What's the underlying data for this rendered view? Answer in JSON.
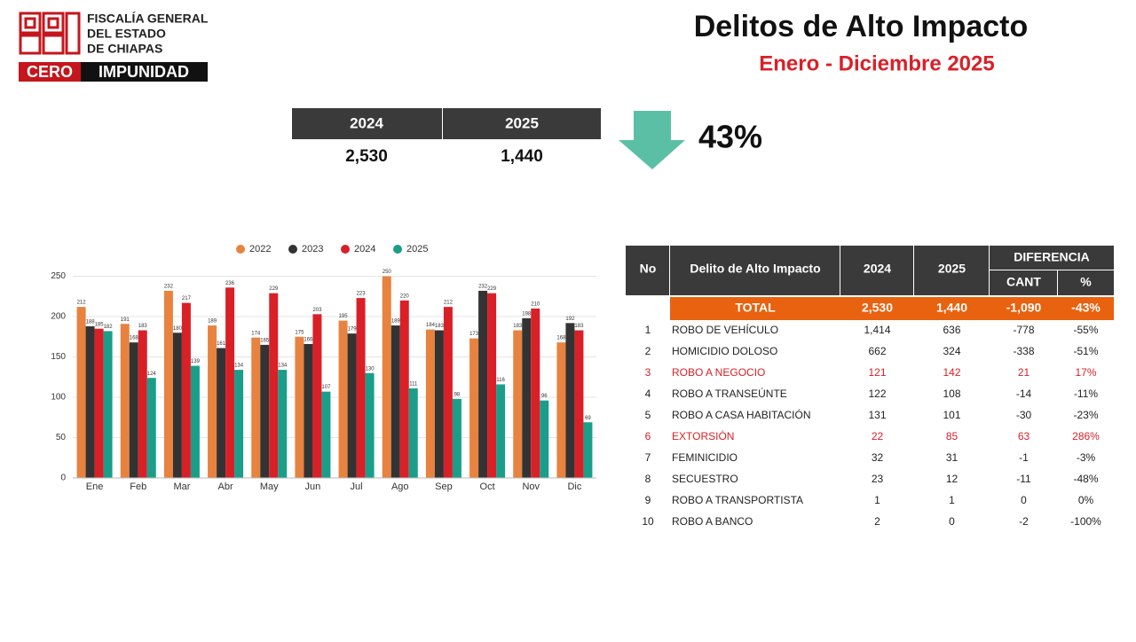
{
  "header": {
    "org": [
      "FISCALÍA GENERAL",
      "DEL ESTADO",
      "DE CHIAPAS"
    ],
    "badge": [
      "CERO",
      "IMPUNIDAD"
    ],
    "title": "Delitos de Alto Impacto",
    "subtitle": "Enero - Diciembre 2025"
  },
  "summary": {
    "headers": [
      "2024",
      "2025"
    ],
    "values": [
      "2,530",
      "1,440"
    ],
    "change": "43%"
  },
  "chart_data": {
    "type": "bar",
    "categories": [
      "Ene",
      "Feb",
      "Mar",
      "Abr",
      "May",
      "Jun",
      "Jul",
      "Ago",
      "Sep",
      "Oct",
      "Nov",
      "Dic"
    ],
    "series": [
      {
        "name": "2022",
        "color": "#e8823f",
        "values": [
          212,
          191,
          232,
          189,
          174,
          175,
          195,
          250,
          184,
          173,
          183,
          168
        ]
      },
      {
        "name": "2023",
        "color": "#333333",
        "values": [
          188,
          168,
          180,
          161,
          165,
          166,
          179,
          189,
          183,
          232,
          198,
          192
        ]
      },
      {
        "name": "2024",
        "color": "#d92027",
        "values": [
          185,
          183,
          217,
          236,
          229,
          203,
          223,
          220,
          212,
          229,
          210,
          183
        ]
      },
      {
        "name": "2025",
        "color": "#1a9e8a",
        "values": [
          182,
          124,
          139,
          134,
          134,
          107,
          130,
          111,
          98,
          116,
          96,
          69
        ]
      }
    ],
    "ylim": [
      0,
      255
    ],
    "yticks": [
      0,
      50,
      100,
      150,
      200,
      250
    ],
    "grid": true,
    "legend": "top"
  },
  "table": {
    "headers": [
      "No",
      "Delito de Alto Impacto",
      "2024",
      "2025",
      "DIFERENCIA",
      "CANT",
      "%"
    ],
    "total": [
      "TOTAL",
      "2,530",
      "1,440",
      "-1,090",
      "-43%"
    ],
    "rows": [
      {
        "cells": [
          "1",
          "ROBO DE VEHÍCULO",
          "1,414",
          "636",
          "-778",
          "-55%"
        ],
        "highlight": false
      },
      {
        "cells": [
          "2",
          "HOMICIDIO DOLOSO",
          "662",
          "324",
          "-338",
          "-51%"
        ],
        "highlight": false
      },
      {
        "cells": [
          "3",
          "ROBO A NEGOCIO",
          "121",
          "142",
          "21",
          "17%"
        ],
        "highlight": true
      },
      {
        "cells": [
          "4",
          "ROBO A TRANSEÚNTE",
          "122",
          "108",
          "-14",
          "-11%"
        ],
        "highlight": false
      },
      {
        "cells": [
          "5",
          "ROBO A CASA HABITACIÓN",
          "131",
          "101",
          "-30",
          "-23%"
        ],
        "highlight": false
      },
      {
        "cells": [
          "6",
          "EXTORSIÓN",
          "22",
          "85",
          "63",
          "286%"
        ],
        "highlight": true
      },
      {
        "cells": [
          "7",
          "FEMINICIDIO",
          "32",
          "31",
          "-1",
          "-3%"
        ],
        "highlight": false
      },
      {
        "cells": [
          "8",
          "SECUESTRO",
          "23",
          "12",
          "-11",
          "-48%"
        ],
        "highlight": false
      },
      {
        "cells": [
          "9",
          "ROBO A TRANSPORTISTA",
          "1",
          "1",
          "0",
          "0%"
        ],
        "highlight": false
      },
      {
        "cells": [
          "10",
          "ROBO A BANCO",
          "2",
          "0",
          "-2",
          "-100%"
        ],
        "highlight": false
      }
    ]
  }
}
